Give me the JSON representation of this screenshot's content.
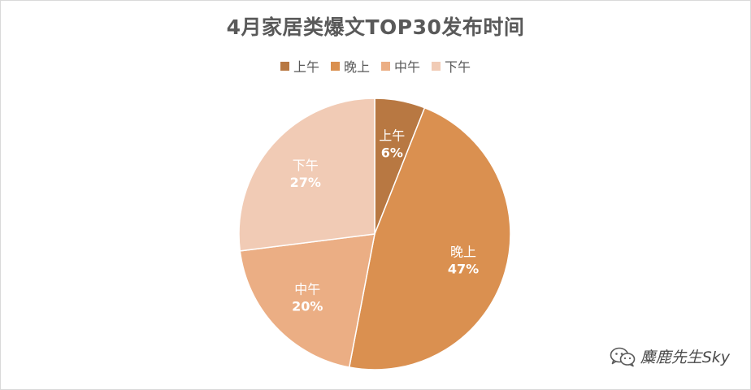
{
  "chart_data": {
    "type": "pie",
    "title": "4月家居类爆文TOP30发布时间",
    "legend": {
      "placement": "top",
      "entries": [
        "上午",
        "晚上",
        "中午",
        "下午"
      ]
    },
    "slices": [
      {
        "label": "上午",
        "value": 6,
        "value_label": "6%",
        "color": "#b87842"
      },
      {
        "label": "晚上",
        "value": 47,
        "value_label": "47%",
        "color": "#da9050"
      },
      {
        "label": "中午",
        "value": 20,
        "value_label": "20%",
        "color": "#ebae84"
      },
      {
        "label": "下午",
        "value": 27,
        "value_label": "27%",
        "color": "#f1cbb5"
      }
    ]
  },
  "watermark": {
    "text": "麋鹿先生Sky",
    "icon": "wechat-icon"
  }
}
